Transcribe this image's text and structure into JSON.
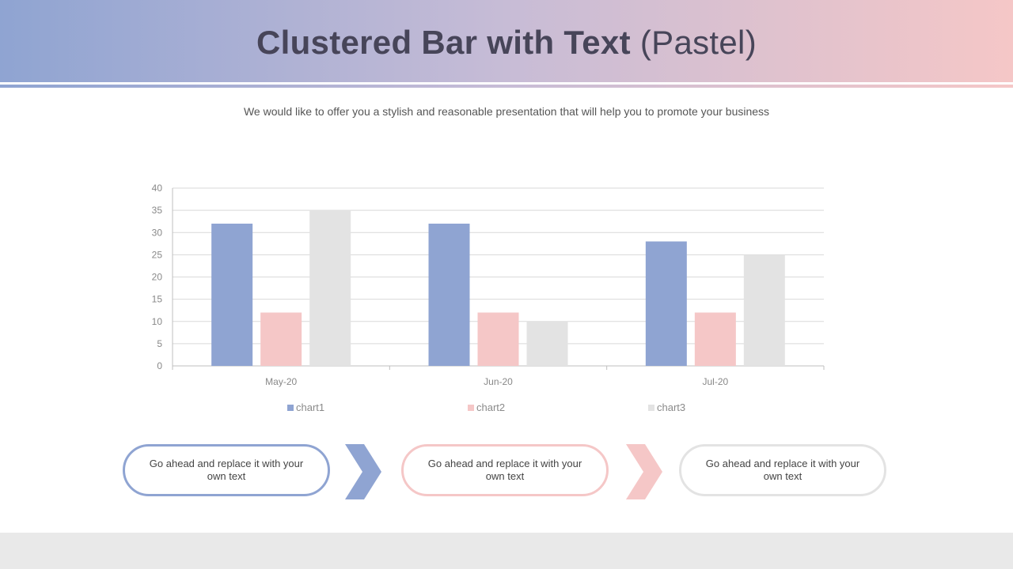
{
  "slide": {
    "title_bold": "Clustered Bar with Text",
    "title_light": "(Pastel)",
    "subtitle": "We would like to offer you a stylish and reasonable presentation that will help you to promote your business"
  },
  "colors": {
    "series1": "#8fa4d2",
    "series2": "#f5c7c7",
    "series3": "#e3e3e3"
  },
  "steps": [
    {
      "text": "Go ahead and replace it with your own text",
      "color": "#8fa4d2"
    },
    {
      "text": "Go ahead and replace it with your own text",
      "color": "#f5c7c7"
    },
    {
      "text": "Go ahead and replace it with your own text",
      "color": "#e3e3e3"
    }
  ],
  "arrows": [
    {
      "icon": "chevron-right-icon",
      "color": "#8fa4d2"
    },
    {
      "icon": "chevron-right-icon",
      "color": "#f5c7c7"
    }
  ],
  "chart_data": {
    "type": "bar",
    "title": "",
    "xlabel": "",
    "ylabel": "",
    "categories": [
      "May-20",
      "Jun-20",
      "Jul-20"
    ],
    "series": [
      {
        "name": "chart1",
        "values": [
          32,
          32,
          28
        ],
        "color": "#8fa4d2"
      },
      {
        "name": "chart2",
        "values": [
          12,
          12,
          12
        ],
        "color": "#f5c7c7"
      },
      {
        "name": "chart3",
        "values": [
          35,
          10,
          25
        ],
        "color": "#e3e3e3"
      }
    ],
    "ylim": [
      0,
      40
    ],
    "yticks": [
      0,
      5,
      10,
      15,
      20,
      25,
      30,
      35,
      40
    ],
    "grid": true,
    "legend": "bottom"
  }
}
